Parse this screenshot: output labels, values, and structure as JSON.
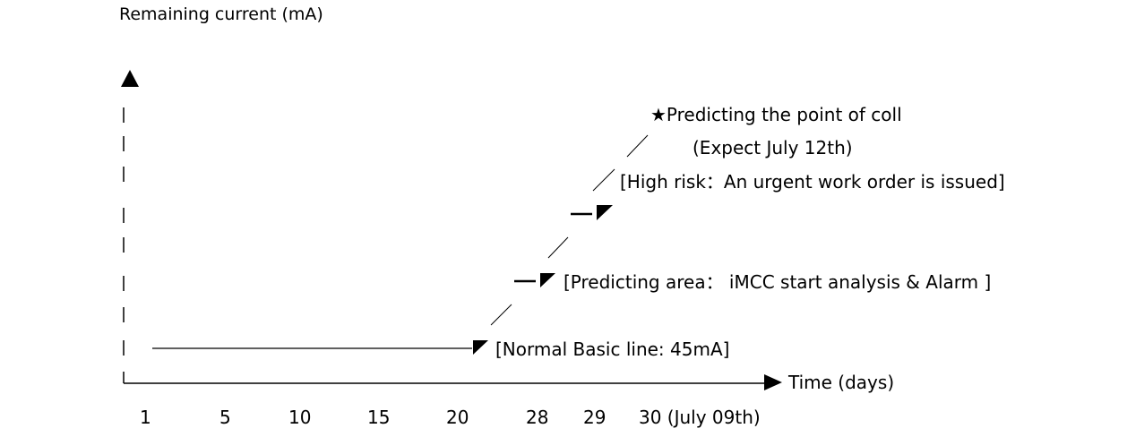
{
  "y_axis_label": "Remaining current (mA)",
  "x_axis_label": "Time (days)",
  "x_ticks": [
    "1",
    "5",
    "10",
    "15",
    "20",
    "28",
    "29",
    "30 (July 09th)"
  ],
  "annotations": {
    "normal": "[Normal Basic line: 45mA]",
    "predicting": "[Predicting area： iMCC start analysis & Alarm ]",
    "high_risk": "[High risk：An urgent work order is issued]",
    "collapse_point": "★Predicting the point of coll",
    "expected_date": "(Expect July 12th)"
  }
}
